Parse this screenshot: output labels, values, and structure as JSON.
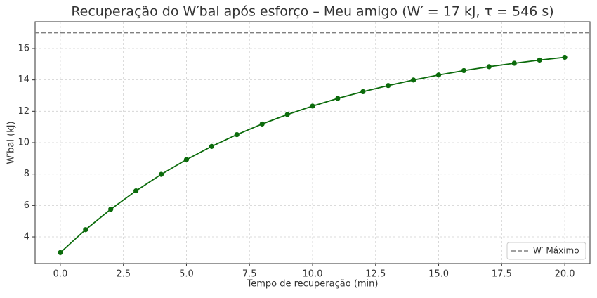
{
  "chart_data": {
    "type": "line",
    "title": "Recuperação do W′bal após esforço – Meu amigo (W′ = 17 kJ, τ = 546 s)",
    "x_label": "Tempo de recuperação (min)",
    "y_label": "W′bal (kJ)",
    "x": [
      0,
      1,
      2,
      3,
      4,
      5,
      6,
      7,
      8,
      9,
      10,
      11,
      12,
      13,
      14,
      15,
      16,
      17,
      18,
      19,
      20
    ],
    "series": [
      {
        "color": "#0b6b0b",
        "values": [
          3.0,
          4.46,
          5.76,
          6.93,
          7.98,
          8.92,
          9.76,
          10.51,
          11.19,
          11.79,
          12.33,
          12.82,
          13.25,
          13.64,
          13.99,
          14.31,
          14.59,
          14.84,
          15.06,
          15.26,
          15.44
        ]
      }
    ],
    "reference_line": {
      "y": 17,
      "label": "W′ Máximo",
      "color": "#808080"
    },
    "xlim": [
      -1,
      21
    ],
    "ylim": [
      2.3,
      17.7
    ],
    "xticks": [
      {
        "value": 0,
        "label": "0.0"
      },
      {
        "value": 2.5,
        "label": "2.5"
      },
      {
        "value": 5,
        "label": "5.0"
      },
      {
        "value": 7.5,
        "label": "7.5"
      },
      {
        "value": 10,
        "label": "10.0"
      },
      {
        "value": 12.5,
        "label": "12.5"
      },
      {
        "value": 15,
        "label": "15.0"
      },
      {
        "value": 17.5,
        "label": "17.5"
      },
      {
        "value": 20,
        "label": "20.0"
      }
    ],
    "yticks": [
      4,
      6,
      8,
      10,
      12,
      14,
      16
    ],
    "grid": true,
    "legend": "lower right"
  }
}
